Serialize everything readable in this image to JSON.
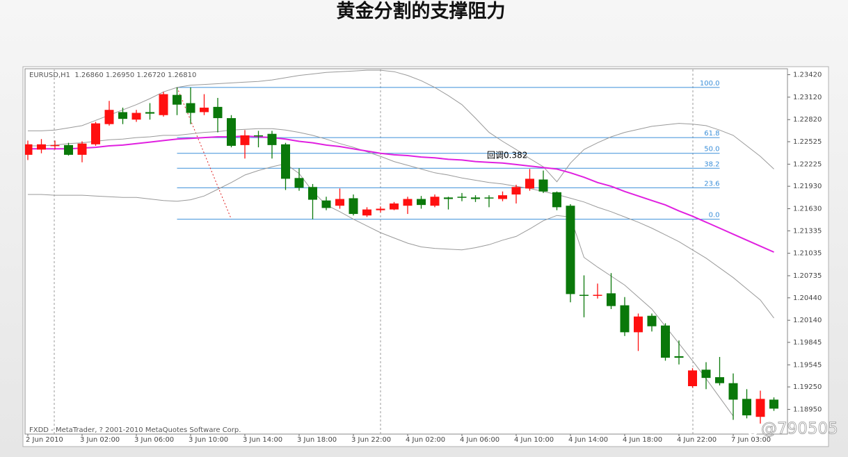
{
  "chart_data": {
    "type": "candlestick",
    "title": "黄金分割的支撑阻力",
    "header": "EURUSD,H1  1.26860 1.26950 1.26720 1.26810",
    "footer": "FXDD - MetaTrader, ? 2001-2010 MetaQuotes Software Corp.",
    "watermark": "@790505",
    "annotation": "回调0.382",
    "categories": [
      "2 Jun 2010",
      null,
      null,
      null,
      "3 Jun 02:00",
      null,
      null,
      null,
      "3 Jun 06:00",
      null,
      null,
      null,
      "3 Jun 10:00",
      null,
      null,
      null,
      "3 Jun 14:00",
      null,
      null,
      null,
      "3 Jun 18:00",
      null,
      null,
      null,
      "3 Jun 22:00",
      null,
      null,
      null,
      "4 Jun 02:00",
      null,
      null,
      null,
      "4 Jun 06:00",
      null,
      null,
      null,
      "4 Jun 10:00",
      null,
      null,
      null,
      "4 Jun 14:00",
      null,
      null,
      null,
      "4 Jun 18:00",
      null,
      null,
      null,
      "4 Jun 22:00",
      null,
      null,
      null,
      "7 Jun 03:00",
      null,
      null,
      null
    ],
    "open": [
      1.2235,
      1.2242,
      1.2247,
      1.2248,
      1.2235,
      1.2249,
      1.2276,
      1.2292,
      1.2282,
      1.2292,
      1.2288,
      1.2315,
      1.2304,
      1.2292,
      1.2299,
      1.2284,
      1.2248,
      1.2261,
      1.2263,
      1.2249,
      1.2204,
      1.2192,
      1.2174,
      1.2167,
      1.2177,
      1.2154,
      1.2161,
      1.2162,
      1.2167,
      1.2176,
      1.2167,
      1.2178,
      1.2179,
      1.2178,
      1.2178,
      1.2176,
      1.2182,
      1.219,
      1.2202,
      1.2185,
      1.2167,
      1.2048,
      1.2047,
      1.205,
      1.2034,
      1.1998,
      1.202,
      1.2007,
      1.1966,
      1.1926,
      1.1948,
      1.1938,
      1.193,
      1.1909,
      1.1885,
      1.1908
    ],
    "high": [
      1.2254,
      1.2256,
      1.2254,
      1.2251,
      1.2253,
      1.2279,
      1.2307,
      1.2298,
      1.2295,
      1.2304,
      1.2319,
      1.2325,
      1.2325,
      1.2316,
      1.2311,
      1.2288,
      1.2268,
      1.2267,
      1.2267,
      1.2251,
      1.2217,
      1.2196,
      1.2179,
      1.219,
      1.2182,
      1.2165,
      1.2166,
      1.2172,
      1.2179,
      1.218,
      1.2182,
      1.2179,
      1.2184,
      1.2181,
      1.2181,
      1.2186,
      1.2195,
      1.2216,
      1.2214,
      1.2186,
      1.2169,
      1.2074,
      1.2063,
      1.2077,
      1.2045,
      1.2023,
      1.2023,
      1.201,
      1.1987,
      1.195,
      1.1958,
      1.1965,
      1.1943,
      1.1922,
      1.192,
      1.1911
    ],
    "low": [
      1.2228,
      1.2237,
      1.2242,
      1.2234,
      1.2225,
      1.2247,
      1.2274,
      1.2276,
      1.2279,
      1.2282,
      1.2286,
      1.2288,
      1.2276,
      1.2288,
      1.2265,
      1.2245,
      1.223,
      1.2245,
      1.223,
      1.2188,
      1.2187,
      1.2149,
      1.2161,
      1.2163,
      1.2154,
      1.2152,
      1.2158,
      1.2161,
      1.2156,
      1.2163,
      1.2165,
      1.2162,
      1.2173,
      1.2172,
      1.2165,
      1.2173,
      1.217,
      1.2187,
      1.2184,
      1.2161,
      1.2038,
      1.2018,
      1.2043,
      1.2029,
      1.1993,
      1.1973,
      1.1999,
      1.196,
      1.1955,
      1.1924,
      1.1922,
      1.1927,
      1.1881,
      1.1883,
      1.1876,
      1.1893
    ],
    "close": [
      1.2249,
      1.2249,
      1.2248,
      1.2235,
      1.225,
      1.2277,
      1.2295,
      1.2283,
      1.2291,
      1.229,
      1.2316,
      1.2302,
      1.2291,
      1.2298,
      1.2284,
      1.2247,
      1.2261,
      1.226,
      1.2248,
      1.2203,
      1.2191,
      1.2175,
      1.2164,
      1.2176,
      1.2156,
      1.2162,
      1.2163,
      1.217,
      1.2176,
      1.2168,
      1.2179,
      1.2176,
      1.2178,
      1.2176,
      1.2177,
      1.2181,
      1.2192,
      1.2203,
      1.2186,
      1.2165,
      1.2049,
      1.2047,
      1.2048,
      1.2033,
      1.1998,
      1.2019,
      1.2006,
      1.1964,
      1.1964,
      1.1947,
      1.1937,
      1.193,
      1.1908,
      1.1887,
      1.1909,
      1.1896
    ],
    "up_color": "#ff1010",
    "down_color": "#0a780a",
    "series": [
      {
        "color": "#999999",
        "values": [
          1.2267,
          1.2267,
          1.2268,
          1.2271,
          1.2274,
          1.2281,
          1.2288,
          1.2295,
          1.2302,
          1.231,
          1.2319,
          1.2325,
          1.2328,
          1.2329,
          1.233,
          1.2331,
          1.2332,
          1.2333,
          1.2335,
          1.2338,
          1.2341,
          1.2343,
          1.2345,
          1.2346,
          1.2347,
          1.2348,
          1.2348,
          1.2346,
          1.2341,
          1.2334,
          1.2325,
          1.2314,
          1.2302,
          1.2284,
          1.2265,
          1.2253,
          1.2242,
          1.223,
          1.2219,
          1.2199,
          1.2224,
          1.2242,
          1.2251,
          1.2259,
          1.2265,
          1.2269,
          1.2273,
          1.2275,
          1.2277,
          1.2276,
          1.2274,
          1.2268,
          1.2261,
          1.2247,
          1.2233,
          1.2216
        ]
      },
      {
        "color": "#999999",
        "values": [
          1.2247,
          1.2247,
          1.2248,
          1.225,
          1.2251,
          1.2253,
          1.2255,
          1.2256,
          1.2258,
          1.2259,
          1.2261,
          1.2261,
          1.2263,
          1.2265,
          1.2266,
          1.2268,
          1.2269,
          1.227,
          1.227,
          1.2268,
          1.2265,
          1.2261,
          1.2256,
          1.225,
          1.2245,
          1.2239,
          1.2233,
          1.2226,
          1.2221,
          1.2216,
          1.2211,
          1.2208,
          1.2204,
          1.2201,
          1.2198,
          1.2196,
          1.2193,
          1.219,
          1.2186,
          1.2182,
          1.2177,
          1.2172,
          1.2165,
          1.2159,
          1.2152,
          1.2145,
          1.2137,
          1.2128,
          1.2119,
          1.2108,
          1.2097,
          1.2084,
          1.2071,
          1.2056,
          1.2041,
          1.2017
        ]
      },
      {
        "color": "#999999",
        "values": [
          1.2182,
          1.2182,
          1.2181,
          1.2181,
          1.2181,
          1.218,
          1.2179,
          1.2178,
          1.2178,
          1.2176,
          1.2174,
          1.2173,
          1.2175,
          1.218,
          1.2189,
          1.2198,
          1.2208,
          1.2214,
          1.2219,
          1.2223,
          1.221,
          1.2186,
          1.2168,
          1.2159,
          1.2149,
          1.214,
          1.2131,
          1.2124,
          1.2117,
          1.2112,
          1.211,
          1.2109,
          1.2108,
          1.2111,
          1.2115,
          1.2121,
          1.2126,
          1.2136,
          1.2147,
          1.2154,
          1.2152,
          1.2098,
          1.2085,
          1.2073,
          1.2061,
          1.2045,
          1.2029,
          1.2006,
          1.1983,
          1.196,
          1.1936,
          1.1911,
          1.1886,
          null,
          null,
          null
        ]
      },
      {
        "color": "#e020e0",
        "values": [
          1.2243,
          1.2243,
          1.2243,
          1.2243,
          1.2244,
          1.2245,
          1.2247,
          1.2248,
          1.225,
          1.2252,
          1.2254,
          1.2256,
          1.2257,
          1.2258,
          1.2259,
          1.2259,
          1.226,
          1.2259,
          1.2258,
          1.2256,
          1.2253,
          1.2251,
          1.2248,
          1.2246,
          1.2243,
          1.224,
          1.2237,
          1.2235,
          1.2234,
          1.2232,
          1.2231,
          1.2229,
          1.2228,
          1.2226,
          1.2225,
          1.2224,
          1.2222,
          1.222,
          1.2218,
          1.2216,
          1.2211,
          1.2205,
          1.2198,
          1.2193,
          1.2186,
          1.218,
          1.2174,
          1.2168,
          1.216,
          1.2153,
          1.2145,
          1.2137,
          1.2129,
          1.2121,
          1.2113,
          1.2105
        ]
      }
    ],
    "fib_color": "#3b8fd9",
    "fib_levels": [
      {
        "label": "100.0",
        "value": 1.2325
      },
      {
        "label": "61.8",
        "value": 1.2258
      },
      {
        "label": "50.0",
        "value": 1.2237
      },
      {
        "label": "38.2",
        "value": 1.2217
      },
      {
        "label": "23.6",
        "value": 1.2191
      },
      {
        "label": "0.0",
        "value": 1.2149
      }
    ],
    "ylim": [
      1.1862,
      1.2349
    ],
    "yticks": [
      {
        "value": 1.2342,
        "label": "1.23420"
      },
      {
        "value": 1.2312,
        "label": "1.23120"
      },
      {
        "value": 1.2282,
        "label": "1.22820"
      },
      1.22525,
      1.22225,
      {
        "value": 1.2193,
        "label": "1.21930"
      },
      {
        "value": 1.2163,
        "label": "1.21630"
      },
      1.21335,
      1.21035,
      1.20735,
      {
        "value": 1.2044,
        "label": "1.20440"
      },
      {
        "value": 1.2014,
        "label": "1.20140"
      },
      1.19845,
      1.19545,
      {
        "value": 1.1925,
        "label": "1.19250"
      },
      {
        "value": 1.1895,
        "label": "1.18950"
      }
    ]
  }
}
